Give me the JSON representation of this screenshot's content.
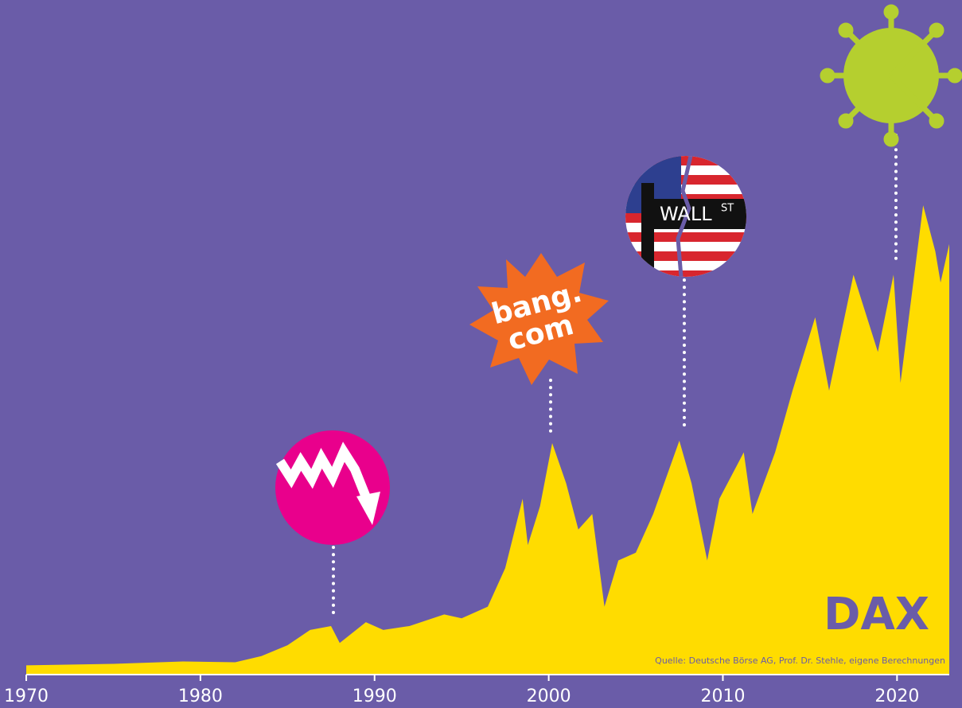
{
  "chart_data": {
    "type": "area",
    "title": "DAX",
    "source": "Quelle: Deutsche Börse AG, Prof. Dr. Stehle, eigene Berechnungen",
    "annotations": [
      "bang.",
      "com",
      "WALL",
      "ST"
    ],
    "x": [
      1970,
      1975,
      1979,
      1982,
      1983.5,
      1985,
      1986.3,
      1987.5,
      1988,
      1989.5,
      1990.5,
      1992,
      1994,
      1995,
      1996.5,
      1997.5,
      1998.5,
      1998.8,
      1999.5,
      2000.2,
      2001,
      2001.7,
      2002.5,
      2003.2,
      2004,
      2005,
      2006,
      2007.5,
      2008.2,
      2009.1,
      2009.8,
      2011.2,
      2011.7,
      2013,
      2014,
      2015.3,
      2016.1,
      2017.5,
      2018.9,
      2019.8,
      2020.2,
      2021.5,
      2022.2,
      2022.5,
      2023
    ],
    "values": [
      310,
      360,
      440,
      415,
      620,
      985,
      1500,
      1630,
      1060,
      1760,
      1500,
      1630,
      2020,
      1890,
      2280,
      3570,
      5900,
      4350,
      5650,
      7770,
      6420,
      4870,
      5390,
      2280,
      3830,
      4090,
      5390,
      7850,
      6420,
      3830,
      5900,
      7460,
      5390,
      7460,
      9530,
      11990,
      9530,
      13420,
      10830,
      13420,
      9790,
      15750,
      14200,
      13160,
      14450
    ],
    "color": "#ffdc00",
    "xlim": [
      1970,
      2023
    ],
    "xticks": [
      1970,
      1980,
      1990,
      2000,
      2010,
      2020
    ],
    "ylim": [
      0,
      16500
    ]
  }
}
